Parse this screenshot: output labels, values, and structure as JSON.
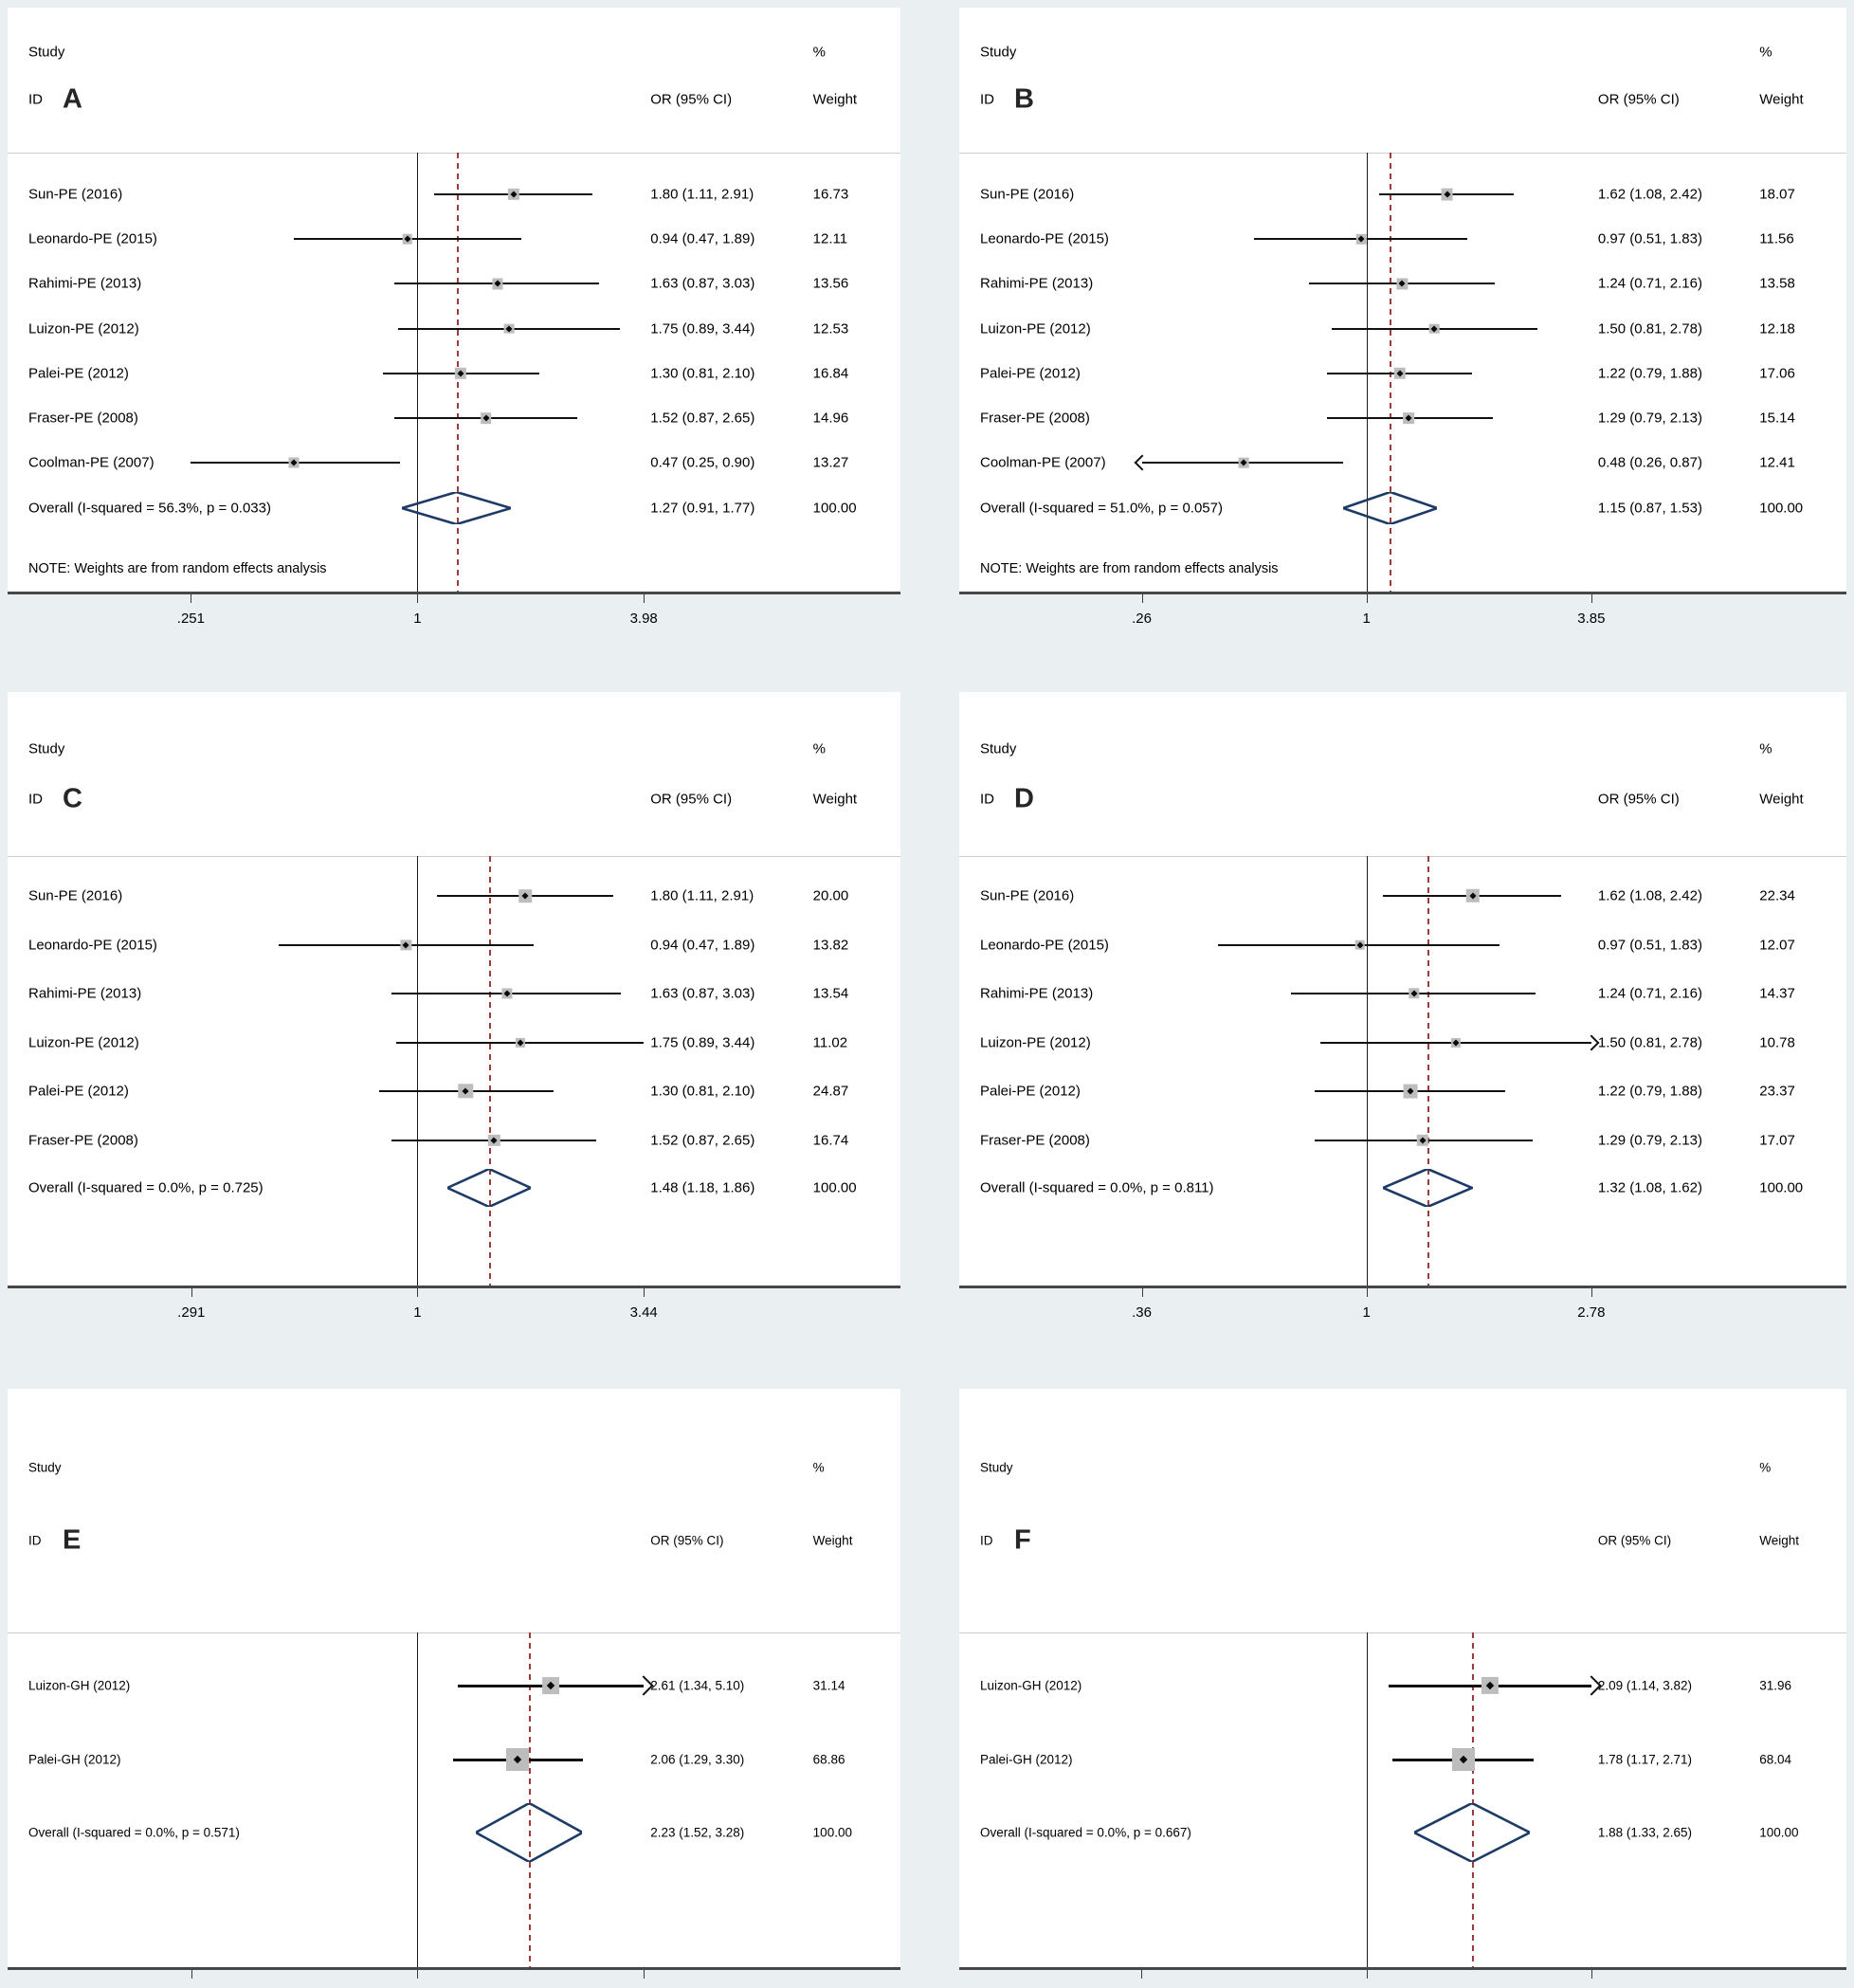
{
  "figure_background": "#eaf0f2",
  "styles": {
    "panel_bg": "#ffffff",
    "axis_color": "#474747",
    "null_line_color": "#1a1a1a",
    "dashed_line_color": "#9c3b3c",
    "ci_line_color": "#111111",
    "weight_box_color": "#bdbdbd",
    "marker_color": "#0a0a0a",
    "diamond_color": "#1d3b66",
    "separator_color": "#cccccc",
    "text_color": "#000000"
  },
  "headers": {
    "study": "Study",
    "id": "ID",
    "or": "OR (95% CI)",
    "pct": "%",
    "weight": "Weight"
  },
  "chart_data": [
    {
      "panel": "A",
      "type": "scatter",
      "x_scale": "log",
      "x_ticks": [
        ".251",
        "1",
        "3.98"
      ],
      "axis_range": [
        0.251,
        3.98
      ],
      "studies": [
        {
          "label": "Sun-PE (2016)",
          "or": 1.8,
          "ci": [
            1.11,
            2.91
          ],
          "or_text": "1.80 (1.11, 2.91)",
          "weight": 16.73,
          "weight_text": "16.73",
          "arrow": null
        },
        {
          "label": "Leonardo-PE (2015)",
          "or": 0.94,
          "ci": [
            0.47,
            1.89
          ],
          "or_text": "0.94 (0.47, 1.89)",
          "weight": 12.11,
          "weight_text": "12.11",
          "arrow": null
        },
        {
          "label": "Rahimi-PE (2013)",
          "or": 1.63,
          "ci": [
            0.87,
            3.03
          ],
          "or_text": "1.63 (0.87, 3.03)",
          "weight": 13.56,
          "weight_text": "13.56",
          "arrow": null
        },
        {
          "label": "Luizon-PE (2012)",
          "or": 1.75,
          "ci": [
            0.89,
            3.44
          ],
          "or_text": "1.75 (0.89, 3.44)",
          "weight": 12.53,
          "weight_text": "12.53",
          "arrow": null
        },
        {
          "label": "Palei-PE (2012)",
          "or": 1.3,
          "ci": [
            0.81,
            2.1
          ],
          "or_text": "1.30 (0.81, 2.10)",
          "weight": 16.84,
          "weight_text": "16.84",
          "arrow": null
        },
        {
          "label": "Fraser-PE (2008)",
          "or": 1.52,
          "ci": [
            0.87,
            2.65
          ],
          "or_text": "1.52 (0.87, 2.65)",
          "weight": 14.96,
          "weight_text": "14.96",
          "arrow": null
        },
        {
          "label": "Coolman-PE (2007)",
          "or": 0.47,
          "ci": [
            0.25,
            0.9
          ],
          "or_text": "0.47 (0.25, 0.90)",
          "weight": 13.27,
          "weight_text": "13.27",
          "arrow": null
        }
      ],
      "overall": {
        "label": "Overall  (I-squared = 56.3%, p = 0.033)",
        "or": 1.27,
        "ci": [
          0.91,
          1.77
        ],
        "or_text": "1.27 (0.91, 1.77)",
        "weight_text": "100.00"
      },
      "note": "NOTE: Weights are from random effects analysis"
    },
    {
      "panel": "B",
      "type": "scatter",
      "x_scale": "log",
      "x_ticks": [
        ".26",
        "1",
        "3.85"
      ],
      "axis_range": [
        0.26,
        3.85
      ],
      "studies": [
        {
          "label": "Sun-PE (2016)",
          "or": 1.62,
          "ci": [
            1.08,
            2.42
          ],
          "or_text": "1.62 (1.08, 2.42)",
          "weight": 18.07,
          "weight_text": "18.07",
          "arrow": null
        },
        {
          "label": "Leonardo-PE (2015)",
          "or": 0.97,
          "ci": [
            0.51,
            1.83
          ],
          "or_text": "0.97 (0.51, 1.83)",
          "weight": 11.56,
          "weight_text": "11.56",
          "arrow": null
        },
        {
          "label": "Rahimi-PE (2013)",
          "or": 1.24,
          "ci": [
            0.71,
            2.16
          ],
          "or_text": "1.24 (0.71, 2.16)",
          "weight": 13.58,
          "weight_text": "13.58",
          "arrow": null
        },
        {
          "label": "Luizon-PE (2012)",
          "or": 1.5,
          "ci": [
            0.81,
            2.78
          ],
          "or_text": "1.50 (0.81, 2.78)",
          "weight": 12.18,
          "weight_text": "12.18",
          "arrow": null
        },
        {
          "label": "Palei-PE (2012)",
          "or": 1.22,
          "ci": [
            0.79,
            1.88
          ],
          "or_text": "1.22 (0.79, 1.88)",
          "weight": 17.06,
          "weight_text": "17.06",
          "arrow": null
        },
        {
          "label": "Fraser-PE (2008)",
          "or": 1.29,
          "ci": [
            0.79,
            2.13
          ],
          "or_text": "1.29 (0.79, 2.13)",
          "weight": 15.14,
          "weight_text": "15.14",
          "arrow": null
        },
        {
          "label": "Coolman-PE (2007)",
          "or": 0.48,
          "ci": [
            0.26,
            0.87
          ],
          "or_text": "0.48 (0.26, 0.87)",
          "weight": 12.41,
          "weight_text": "12.41",
          "arrow": "left",
          "arrow_at": 0.26
        }
      ],
      "overall": {
        "label": "Overall  (I-squared = 51.0%, p = 0.057)",
        "or": 1.15,
        "ci": [
          0.87,
          1.53
        ],
        "or_text": "1.15 (0.87, 1.53)",
        "weight_text": "100.00"
      },
      "note": "NOTE: Weights are from random effects analysis"
    },
    {
      "panel": "C",
      "type": "scatter",
      "x_scale": "log",
      "x_ticks": [
        ".291",
        "1",
        "3.44"
      ],
      "axis_range": [
        0.291,
        3.44
      ],
      "studies": [
        {
          "label": "Sun-PE (2016)",
          "or": 1.8,
          "ci": [
            1.11,
            2.91
          ],
          "or_text": "1.80 (1.11, 2.91)",
          "weight": 20.0,
          "weight_text": "20.00",
          "arrow": null
        },
        {
          "label": "Leonardo-PE (2015)",
          "or": 0.94,
          "ci": [
            0.47,
            1.89
          ],
          "or_text": "0.94 (0.47, 1.89)",
          "weight": 13.82,
          "weight_text": "13.82",
          "arrow": null
        },
        {
          "label": "Rahimi-PE (2013)",
          "or": 1.63,
          "ci": [
            0.87,
            3.03
          ],
          "or_text": "1.63 (0.87, 3.03)",
          "weight": 13.54,
          "weight_text": "13.54",
          "arrow": null
        },
        {
          "label": "Luizon-PE (2012)",
          "or": 1.75,
          "ci": [
            0.89,
            3.44
          ],
          "or_text": "1.75 (0.89, 3.44)",
          "weight": 11.02,
          "weight_text": "11.02",
          "arrow": null
        },
        {
          "label": "Palei-PE (2012)",
          "or": 1.3,
          "ci": [
            0.81,
            2.1
          ],
          "or_text": "1.30 (0.81, 2.10)",
          "weight": 24.87,
          "weight_text": "24.87",
          "arrow": null
        },
        {
          "label": "Fraser-PE (2008)",
          "or": 1.52,
          "ci": [
            0.87,
            2.65
          ],
          "or_text": "1.52 (0.87, 2.65)",
          "weight": 16.74,
          "weight_text": "16.74",
          "arrow": null
        }
      ],
      "overall": {
        "label": "Overall  (I-squared = 0.0%, p = 0.725)",
        "or": 1.48,
        "ci": [
          1.18,
          1.86
        ],
        "or_text": "1.48 (1.18, 1.86)",
        "weight_text": "100.00"
      },
      "note": null
    },
    {
      "panel": "D",
      "type": "scatter",
      "x_scale": "log",
      "x_ticks": [
        ".36",
        "1",
        "2.78"
      ],
      "axis_range": [
        0.36,
        2.78
      ],
      "studies": [
        {
          "label": "Sun-PE (2016)",
          "or": 1.62,
          "ci": [
            1.08,
            2.42
          ],
          "or_text": "1.62 (1.08, 2.42)",
          "weight": 22.34,
          "weight_text": "22.34",
          "arrow": null
        },
        {
          "label": "Leonardo-PE (2015)",
          "or": 0.97,
          "ci": [
            0.51,
            1.83
          ],
          "or_text": "0.97 (0.51, 1.83)",
          "weight": 12.07,
          "weight_text": "12.07",
          "arrow": null
        },
        {
          "label": "Rahimi-PE (2013)",
          "or": 1.24,
          "ci": [
            0.71,
            2.16
          ],
          "or_text": "1.24 (0.71, 2.16)",
          "weight": 14.37,
          "weight_text": "14.37",
          "arrow": null
        },
        {
          "label": "Luizon-PE (2012)",
          "or": 1.5,
          "ci": [
            0.81,
            2.78
          ],
          "or_text": "1.50 (0.81, 2.78)",
          "weight": 10.78,
          "weight_text": "10.78",
          "arrow": "right",
          "arrow_at": 2.78
        },
        {
          "label": "Palei-PE (2012)",
          "or": 1.22,
          "ci": [
            0.79,
            1.88
          ],
          "or_text": "1.22 (0.79, 1.88)",
          "weight": 23.37,
          "weight_text": "23.37",
          "arrow": null
        },
        {
          "label": "Fraser-PE (2008)",
          "or": 1.29,
          "ci": [
            0.79,
            2.13
          ],
          "or_text": "1.29 (0.79, 2.13)",
          "weight": 17.07,
          "weight_text": "17.07",
          "arrow": null
        }
      ],
      "overall": {
        "label": "Overall  (I-squared = 0.0%, p = 0.811)",
        "or": 1.32,
        "ci": [
          1.08,
          1.62
        ],
        "or_text": "1.32 (1.08, 1.62)",
        "weight_text": "100.00"
      },
      "note": null
    },
    {
      "panel": "E",
      "type": "scatter",
      "x_scale": "log",
      "x_ticks": [],
      "axis_range": [
        0.196,
        5.1
      ],
      "studies": [
        {
          "label": "Luizon-GH (2012)",
          "or": 2.61,
          "ci": [
            1.34,
            5.1
          ],
          "or_text": "2.61 (1.34, 5.10)",
          "weight": 31.14,
          "weight_text": "31.14",
          "arrow": "right",
          "arrow_at": 5.1
        },
        {
          "label": "Palei-GH (2012)",
          "or": 2.06,
          "ci": [
            1.29,
            3.3
          ],
          "or_text": "2.06 (1.29, 3.30)",
          "weight": 68.86,
          "weight_text": "68.86",
          "arrow": null
        }
      ],
      "overall": {
        "label": "Overall  (I-squared = 0.0%, p = 0.571)",
        "or": 2.23,
        "ci": [
          1.52,
          3.28
        ],
        "or_text": "2.23 (1.52, 3.28)",
        "weight_text": "100.00"
      },
      "note": null
    },
    {
      "panel": "F",
      "type": "scatter",
      "x_scale": "log",
      "x_ticks": [],
      "axis_range": [
        0.262,
        3.82
      ],
      "studies": [
        {
          "label": "Luizon-GH (2012)",
          "or": 2.09,
          "ci": [
            1.14,
            3.82
          ],
          "or_text": "2.09 (1.14, 3.82)",
          "weight": 31.96,
          "weight_text": "31.96",
          "arrow": "right",
          "arrow_at": 3.82
        },
        {
          "label": "Palei-GH (2012)",
          "or": 1.78,
          "ci": [
            1.17,
            2.71
          ],
          "or_text": "1.78 (1.17, 2.71)",
          "weight": 68.04,
          "weight_text": "68.04",
          "arrow": null
        }
      ],
      "overall": {
        "label": "Overall  (I-squared = 0.0%, p = 0.667)",
        "or": 1.88,
        "ci": [
          1.33,
          2.65
        ],
        "or_text": "1.88 (1.33, 2.65)",
        "weight_text": "100.00"
      },
      "note": null
    }
  ]
}
